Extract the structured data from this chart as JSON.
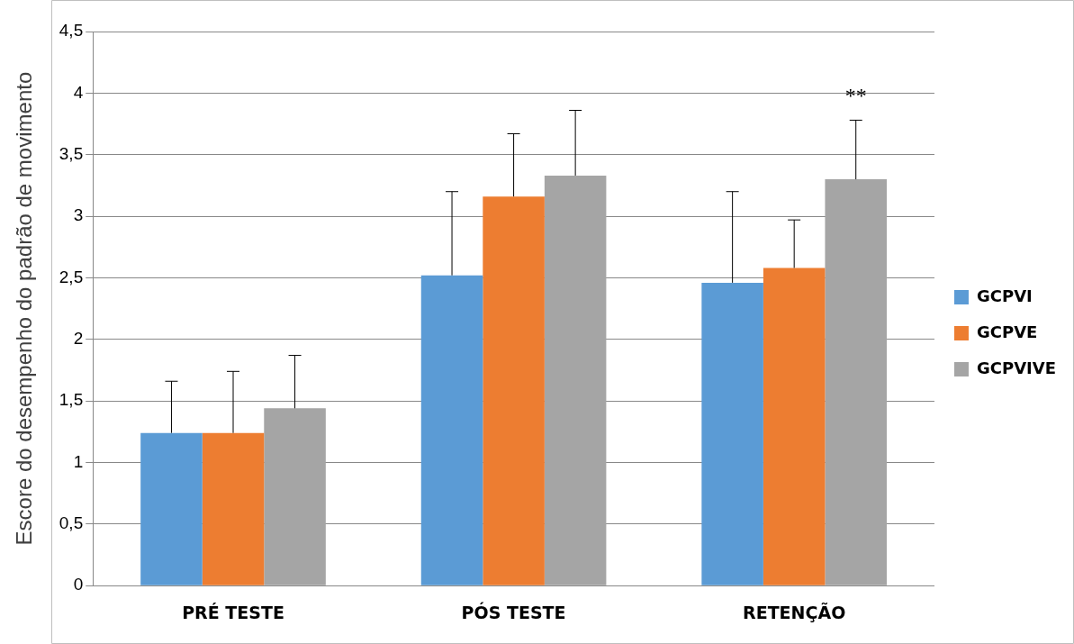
{
  "chart_data": {
    "type": "bar",
    "ylabel": "Escore do desempenho do padrão de movimento",
    "categories": [
      "PRÉ TESTE",
      "PÓS TESTE",
      "RETENÇÃO"
    ],
    "series": [
      {
        "name": "GCPVI",
        "color": "#5b9bd5",
        "values": [
          1.24,
          2.52,
          2.46
        ],
        "errors": [
          [
            1.24,
            1.66
          ],
          [
            2.52,
            3.2
          ],
          [
            2.46,
            3.2
          ]
        ]
      },
      {
        "name": "GCPVE",
        "color": "#ed7d31",
        "values": [
          1.24,
          3.16,
          2.58
        ],
        "errors": [
          [
            1.24,
            1.74
          ],
          [
            3.16,
            3.67
          ],
          [
            2.58,
            2.97
          ]
        ]
      },
      {
        "name": "GCPVIVE",
        "color": "#a5a5a5",
        "values": [
          1.44,
          3.33,
          3.3
        ],
        "errors": [
          [
            1.44,
            1.87
          ],
          [
            3.33,
            3.86
          ],
          [
            3.3,
            3.78
          ]
        ]
      }
    ],
    "ylim": [
      0,
      4.5
    ],
    "yticks": [
      0,
      {
        "value": 0.5,
        "label": "0,5"
      },
      1,
      {
        "value": 1.5,
        "label": "1,5"
      },
      2,
      {
        "value": 2.5,
        "label": "2,5"
      },
      3,
      {
        "value": 3.5,
        "label": "3,5"
      },
      4,
      {
        "value": 4.5,
        "label": "4,5"
      }
    ],
    "grid": "y",
    "legend": "right",
    "annotations": [
      "**"
    ]
  }
}
